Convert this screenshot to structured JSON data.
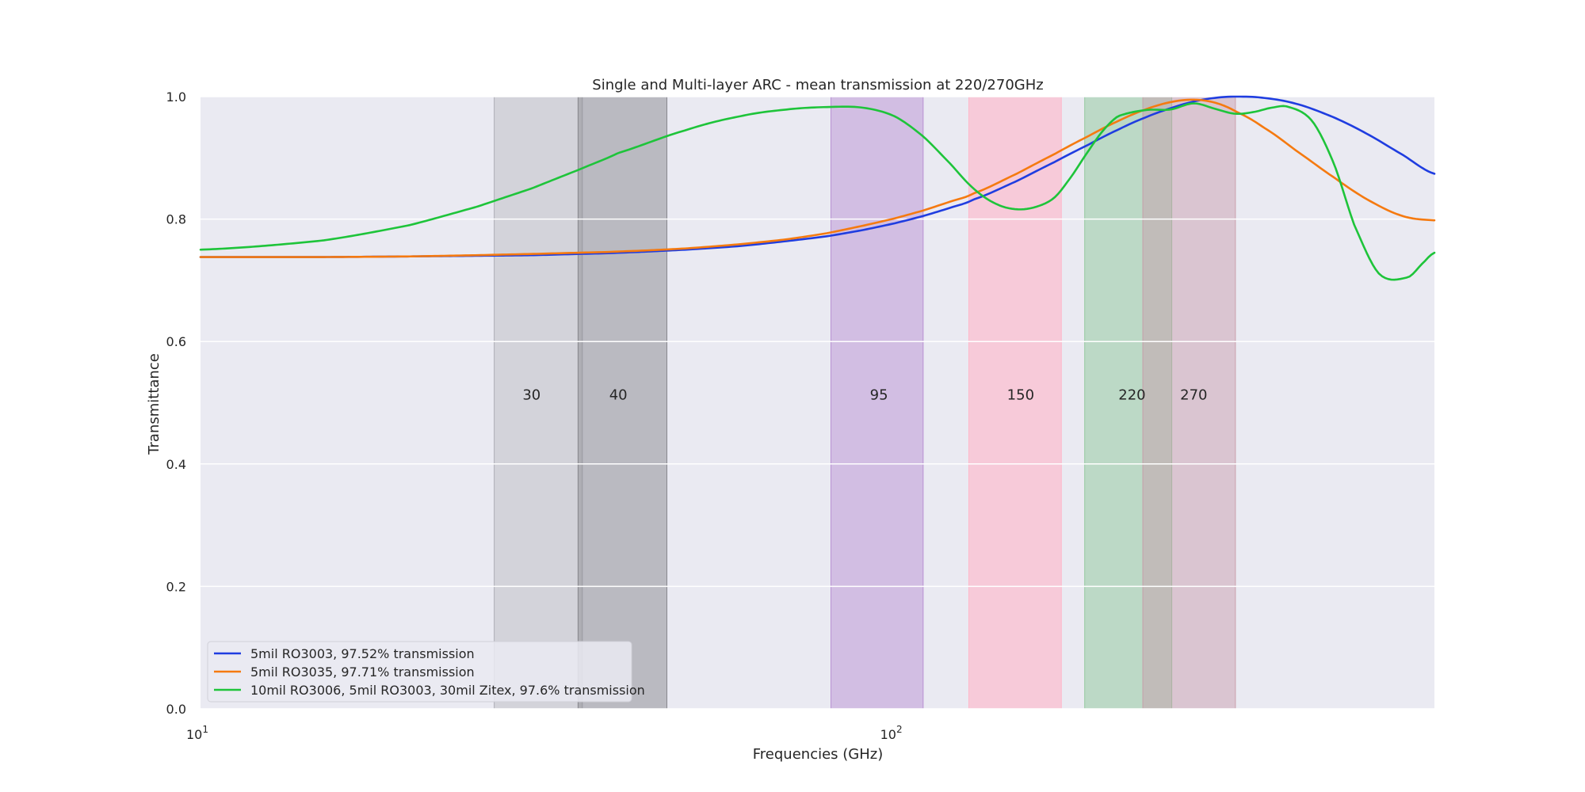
{
  "chart_data": {
    "type": "line",
    "title": "Single and Multi-layer ARC - mean transmission at 220/270GHz",
    "xlabel": "Frequencies (GHz)",
    "ylabel": "Transmittance",
    "xscale": "log",
    "xlim": [
      10,
      600
    ],
    "ylim": [
      0,
      1
    ],
    "grid": true,
    "legend_position": "lower-left",
    "x_ticks": [
      {
        "value": 10,
        "base": "10",
        "exp": "1"
      },
      {
        "value": 100,
        "base": "10",
        "exp": "2"
      }
    ],
    "y_ticks": [
      {
        "value": 0.0,
        "label": "0.0"
      },
      {
        "value": 0.2,
        "label": "0.2"
      },
      {
        "value": 0.4,
        "label": "0.4"
      },
      {
        "value": 0.6,
        "label": "0.6"
      },
      {
        "value": 0.8,
        "label": "0.8"
      },
      {
        "value": 1.0,
        "label": "1.0"
      }
    ],
    "bands": [
      {
        "label": "30",
        "lo": 26.5,
        "hi": 35.5,
        "label_x": 30,
        "color": "#a8a8b0",
        "opacity": 0.35
      },
      {
        "label": "40",
        "lo": 35.0,
        "hi": 47.0,
        "label_x": 40,
        "color": "#808086",
        "opacity": 0.45
      },
      {
        "label": "95",
        "lo": 81.0,
        "hi": 110.0,
        "label_x": 95,
        "color": "#b58ad0",
        "opacity": 0.45
      },
      {
        "label": "150",
        "lo": 128.0,
        "hi": 174.0,
        "label_x": 152,
        "color": "#ffb4c8",
        "opacity": 0.6
      },
      {
        "label": "220",
        "lo": 188.0,
        "hi": 251.0,
        "label_x": 220,
        "color": "#8ec89a",
        "opacity": 0.5
      },
      {
        "label": "270",
        "lo": 228.0,
        "hi": 310.0,
        "label_x": 270,
        "color": "#c89aa8",
        "opacity": 0.45
      }
    ],
    "series": [
      {
        "name": "5mil RO3003, 97.52% transmission",
        "color": "#1f3de0",
        "x": [
          10,
          15,
          20,
          25,
          30,
          35,
          40,
          50,
          60,
          70,
          80,
          90,
          100,
          110,
          120,
          130,
          150,
          170,
          190,
          210,
          230,
          250,
          270,
          290,
          310,
          340,
          380,
          430,
          480,
          540,
          600
        ],
        "y": [
          0.738,
          0.738,
          0.739,
          0.74,
          0.741,
          0.743,
          0.745,
          0.75,
          0.756,
          0.764,
          0.772,
          0.782,
          0.793,
          0.805,
          0.818,
          0.832,
          0.862,
          0.893,
          0.921,
          0.946,
          0.966,
          0.981,
          0.992,
          0.998,
          1.0,
          0.998,
          0.988,
          0.966,
          0.939,
          0.905,
          0.874
        ]
      },
      {
        "name": "5mil RO3035, 97.71% transmission",
        "color": "#f57a10",
        "x": [
          10,
          15,
          20,
          25,
          30,
          35,
          40,
          50,
          60,
          70,
          80,
          90,
          100,
          110,
          120,
          130,
          150,
          170,
          190,
          210,
          230,
          250,
          270,
          290,
          310,
          340,
          380,
          430,
          480,
          540,
          600
        ],
        "y": [
          0.738,
          0.738,
          0.739,
          0.741,
          0.743,
          0.745,
          0.747,
          0.752,
          0.759,
          0.767,
          0.777,
          0.789,
          0.801,
          0.814,
          0.828,
          0.842,
          0.874,
          0.906,
          0.935,
          0.96,
          0.979,
          0.991,
          0.995,
          0.99,
          0.976,
          0.95,
          0.911,
          0.868,
          0.832,
          0.805,
          0.798
        ]
      },
      {
        "name": "10mil RO3006, 5mil RO3003, 30mil Zitex, 97.6% transmission",
        "color": "#1ec43a",
        "x": [
          10,
          15,
          20,
          25,
          30,
          35,
          40,
          50,
          60,
          70,
          80,
          90,
          100,
          110,
          120,
          130,
          140,
          150,
          160,
          170,
          180,
          190,
          200,
          210,
          230,
          250,
          270,
          290,
          310,
          330,
          350,
          370,
          400,
          430,
          460,
          500,
          550,
          580,
          600
        ],
        "y": [
          0.75,
          0.765,
          0.79,
          0.82,
          0.85,
          0.88,
          0.908,
          0.945,
          0.968,
          0.979,
          0.983,
          0.982,
          0.968,
          0.935,
          0.892,
          0.85,
          0.825,
          0.816,
          0.82,
          0.835,
          0.87,
          0.91,
          0.945,
          0.968,
          0.978,
          0.979,
          0.989,
          0.98,
          0.972,
          0.975,
          0.982,
          0.983,
          0.96,
          0.89,
          0.79,
          0.71,
          0.705,
          0.73,
          0.745
        ]
      }
    ]
  }
}
